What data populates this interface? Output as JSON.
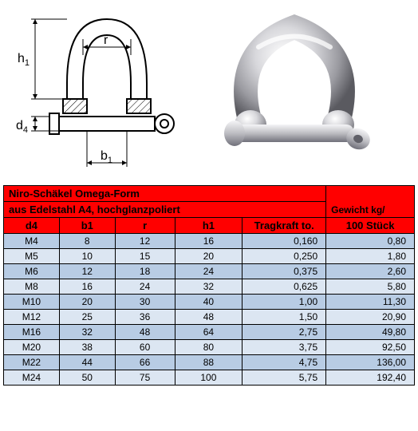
{
  "diagram": {
    "labels": {
      "r": "r",
      "h1": "h",
      "h1_sub": "1",
      "d4": "d",
      "d4_sub": "4",
      "b1": "b",
      "b1_sub": "1"
    },
    "stroke": "#000000",
    "hatch": "#000000",
    "fill": "#ffffff"
  },
  "photo": {
    "body_light": "#e8e8ea",
    "body_mid": "#b8b8bc",
    "body_dark": "#6a6a70",
    "highlight": "#ffffff"
  },
  "table": {
    "title_line1": "Niro-Schäkel Omega-Form",
    "title_line2": "aus Edelstahl A4, hochglanzpoliert",
    "weight_header_line1": "Gewicht kg/",
    "headers": {
      "d4": "d4",
      "b1": "b1",
      "r": "r",
      "h1": "h1",
      "tk": "Tragkraft to.",
      "gw": "100 Stück"
    },
    "colors": {
      "header_bg": "#ff0000",
      "row_even": "#b8cce4",
      "row_odd": "#dce6f2",
      "border": "#000000",
      "text": "#000000"
    },
    "font_size_title": 13,
    "font_size_body": 12,
    "rows": [
      {
        "d4": "M4",
        "b1": "8",
        "r": "12",
        "h1": "16",
        "tk": "0,160",
        "gw": "0,80"
      },
      {
        "d4": "M5",
        "b1": "10",
        "r": "15",
        "h1": "20",
        "tk": "0,250",
        "gw": "1,80"
      },
      {
        "d4": "M6",
        "b1": "12",
        "r": "18",
        "h1": "24",
        "tk": "0,375",
        "gw": "2,60"
      },
      {
        "d4": "M8",
        "b1": "16",
        "r": "24",
        "h1": "32",
        "tk": "0,625",
        "gw": "5,80"
      },
      {
        "d4": "M10",
        "b1": "20",
        "r": "30",
        "h1": "40",
        "tk": "1,00",
        "gw": "11,30"
      },
      {
        "d4": "M12",
        "b1": "25",
        "r": "36",
        "h1": "48",
        "tk": "1,50",
        "gw": "20,90"
      },
      {
        "d4": "M16",
        "b1": "32",
        "r": "48",
        "h1": "64",
        "tk": "2,75",
        "gw": "49,80"
      },
      {
        "d4": "M20",
        "b1": "38",
        "r": "60",
        "h1": "80",
        "tk": "3,75",
        "gw": "92,50"
      },
      {
        "d4": "M22",
        "b1": "44",
        "r": "66",
        "h1": "88",
        "tk": "4,75",
        "gw": "136,00"
      },
      {
        "d4": "M24",
        "b1": "50",
        "r": "75",
        "h1": "100",
        "tk": "5,75",
        "gw": "192,40"
      }
    ]
  }
}
